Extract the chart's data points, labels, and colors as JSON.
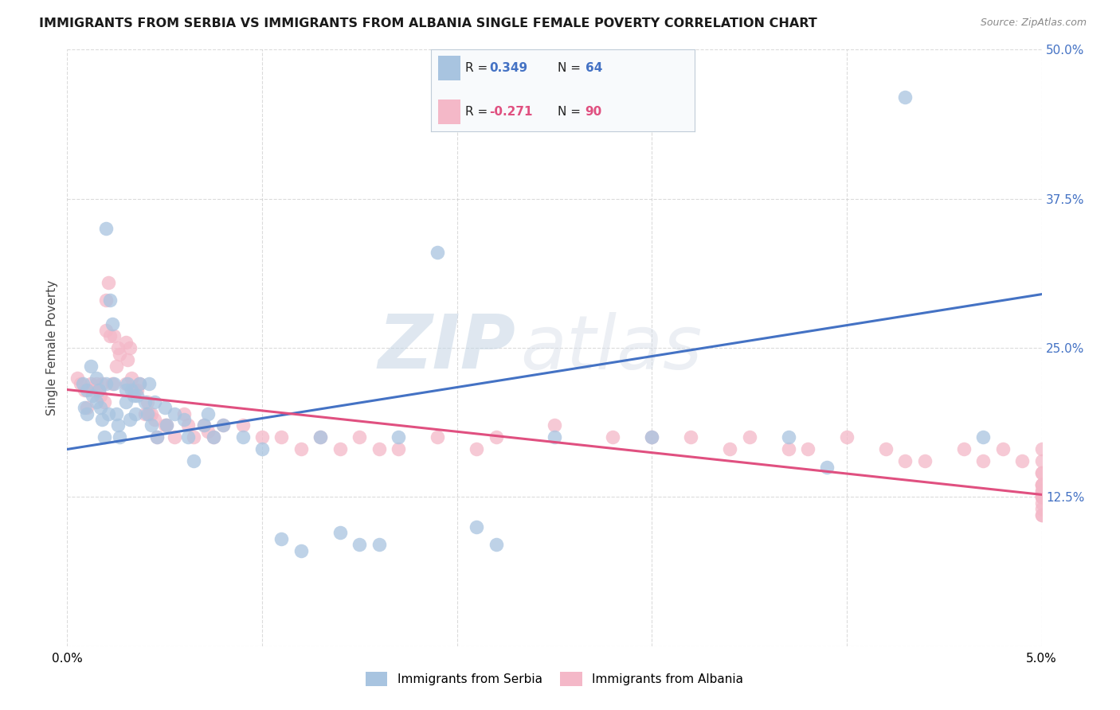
{
  "title": "IMMIGRANTS FROM SERBIA VS IMMIGRANTS FROM ALBANIA SINGLE FEMALE POVERTY CORRELATION CHART",
  "source": "Source: ZipAtlas.com",
  "ylabel": "Single Female Poverty",
  "serbia_color": "#a8c4e0",
  "albania_color": "#f4b8c8",
  "serbia_line_color": "#4472c4",
  "albania_line_color": "#e05080",
  "watermark_zip": "ZIP",
  "watermark_atlas": "atlas",
  "background_color": "#ffffff",
  "grid_color": "#cccccc",
  "serbia_scatter_x": [
    0.0008,
    0.0009,
    0.001,
    0.001,
    0.0012,
    0.0013,
    0.0015,
    0.0015,
    0.0016,
    0.0017,
    0.0018,
    0.0019,
    0.002,
    0.002,
    0.0021,
    0.0022,
    0.0023,
    0.0024,
    0.0025,
    0.0026,
    0.0027,
    0.003,
    0.003,
    0.0031,
    0.0032,
    0.0033,
    0.0034,
    0.0035,
    0.0036,
    0.0037,
    0.004,
    0.0041,
    0.0042,
    0.0043,
    0.0045,
    0.0046,
    0.005,
    0.0051,
    0.0055,
    0.006,
    0.0062,
    0.0065,
    0.007,
    0.0072,
    0.0075,
    0.008,
    0.009,
    0.01,
    0.011,
    0.012,
    0.013,
    0.014,
    0.015,
    0.016,
    0.017,
    0.019,
    0.021,
    0.022,
    0.025,
    0.03,
    0.037,
    0.039,
    0.043,
    0.047
  ],
  "serbia_scatter_y": [
    0.22,
    0.2,
    0.215,
    0.195,
    0.235,
    0.21,
    0.225,
    0.205,
    0.215,
    0.2,
    0.19,
    0.175,
    0.35,
    0.22,
    0.195,
    0.29,
    0.27,
    0.22,
    0.195,
    0.185,
    0.175,
    0.205,
    0.215,
    0.22,
    0.19,
    0.215,
    0.21,
    0.195,
    0.21,
    0.22,
    0.205,
    0.195,
    0.22,
    0.185,
    0.205,
    0.175,
    0.2,
    0.185,
    0.195,
    0.19,
    0.175,
    0.155,
    0.185,
    0.195,
    0.175,
    0.185,
    0.175,
    0.165,
    0.09,
    0.08,
    0.175,
    0.095,
    0.085,
    0.085,
    0.175,
    0.33,
    0.1,
    0.085,
    0.175,
    0.175,
    0.175,
    0.15,
    0.46,
    0.175
  ],
  "albania_scatter_x": [
    0.0005,
    0.0007,
    0.0009,
    0.001,
    0.0012,
    0.0013,
    0.0015,
    0.0016,
    0.0017,
    0.0018,
    0.0019,
    0.002,
    0.002,
    0.0021,
    0.0022,
    0.0023,
    0.0024,
    0.0025,
    0.0026,
    0.0027,
    0.003,
    0.003,
    0.0031,
    0.0032,
    0.0033,
    0.0034,
    0.0035,
    0.0036,
    0.0037,
    0.004,
    0.0041,
    0.0042,
    0.0043,
    0.0045,
    0.0046,
    0.005,
    0.0051,
    0.0055,
    0.006,
    0.0062,
    0.0065,
    0.007,
    0.0072,
    0.0075,
    0.008,
    0.009,
    0.01,
    0.011,
    0.012,
    0.013,
    0.014,
    0.015,
    0.016,
    0.017,
    0.019,
    0.021,
    0.022,
    0.025,
    0.028,
    0.03,
    0.032,
    0.034,
    0.035,
    0.037,
    0.038,
    0.04,
    0.042,
    0.043,
    0.044,
    0.046,
    0.047,
    0.048,
    0.049,
    0.05,
    0.05,
    0.05,
    0.05,
    0.05,
    0.05,
    0.05,
    0.05,
    0.05,
    0.05,
    0.05,
    0.05,
    0.05,
    0.05,
    0.05,
    0.05,
    0.05
  ],
  "albania_scatter_y": [
    0.225,
    0.22,
    0.215,
    0.2,
    0.22,
    0.215,
    0.22,
    0.215,
    0.21,
    0.22,
    0.205,
    0.29,
    0.265,
    0.305,
    0.26,
    0.22,
    0.26,
    0.235,
    0.25,
    0.245,
    0.22,
    0.255,
    0.24,
    0.25,
    0.225,
    0.215,
    0.215,
    0.215,
    0.22,
    0.195,
    0.205,
    0.195,
    0.195,
    0.19,
    0.175,
    0.185,
    0.185,
    0.175,
    0.195,
    0.185,
    0.175,
    0.185,
    0.18,
    0.175,
    0.185,
    0.185,
    0.175,
    0.175,
    0.165,
    0.175,
    0.165,
    0.175,
    0.165,
    0.165,
    0.175,
    0.165,
    0.175,
    0.185,
    0.175,
    0.175,
    0.175,
    0.165,
    0.175,
    0.165,
    0.165,
    0.175,
    0.165,
    0.155,
    0.155,
    0.165,
    0.155,
    0.165,
    0.155,
    0.165,
    0.145,
    0.155,
    0.135,
    0.145,
    0.13,
    0.135,
    0.125,
    0.125,
    0.135,
    0.12,
    0.125,
    0.125,
    0.13,
    0.11,
    0.11,
    0.115
  ],
  "serbia_trend_x": [
    0.0,
    0.05
  ],
  "serbia_trend_y": [
    0.165,
    0.295
  ],
  "albania_trend_x": [
    0.0,
    0.05
  ],
  "albania_trend_y": [
    0.215,
    0.127
  ],
  "xlim": [
    0.0,
    0.05
  ],
  "ylim": [
    0.0,
    0.5
  ],
  "xtick_positions": [
    0.0,
    0.01,
    0.02,
    0.03,
    0.04,
    0.05
  ],
  "xtick_labels": [
    "0.0%",
    "",
    "",
    "",
    "",
    "5.0%"
  ],
  "ytick_positions": [
    0.0,
    0.125,
    0.25,
    0.375,
    0.5
  ],
  "ytick_labels": [
    "",
    "12.5%",
    "25.0%",
    "37.5%",
    "50.0%"
  ],
  "legend_box_color": "#f0f4f8",
  "title_fontsize": 11.5,
  "axis_fontsize": 11,
  "right_tick_color": "#4472c4"
}
